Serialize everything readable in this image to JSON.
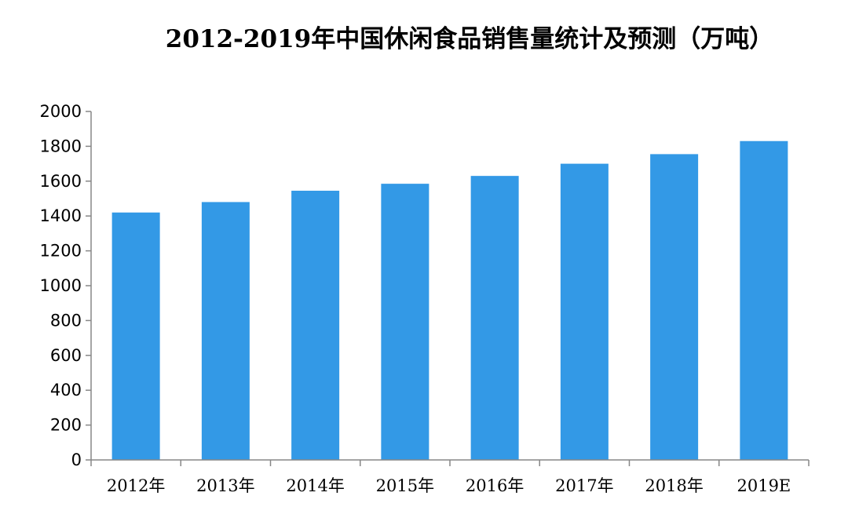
{
  "chart_data": {
    "type": "bar",
    "title": "2012-2019年中国休闲食品销售量统计及预测（万吨）",
    "xlabel": "",
    "ylabel": "",
    "categories": [
      "2012年",
      "2013年",
      "2014年",
      "2015年",
      "2016年",
      "2017年",
      "2018年",
      "2019E"
    ],
    "values": [
      1420,
      1480,
      1545,
      1585,
      1630,
      1700,
      1755,
      1830
    ],
    "ylim": [
      0,
      2000
    ],
    "yticks": [
      0,
      200,
      400,
      600,
      800,
      1000,
      1200,
      1400,
      1600,
      1800,
      2000
    ],
    "grid": false,
    "legend": "none",
    "bar_color": "#3399e6",
    "axis_color": "#878787"
  }
}
